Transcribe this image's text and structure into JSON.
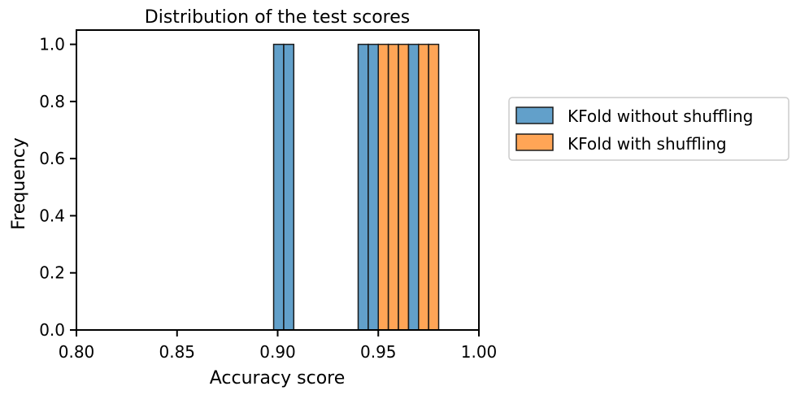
{
  "chart_data": {
    "type": "bar",
    "title": "Distribution of the test scores",
    "xlabel": "Accuracy score",
    "ylabel": "Frequency",
    "xlim": [
      0.8,
      1.0
    ],
    "ylim": [
      0.0,
      1.05
    ],
    "xticks": [
      "0.80",
      "0.85",
      "0.90",
      "0.95",
      "1.00"
    ],
    "yticks": [
      "0.0",
      "0.2",
      "0.4",
      "0.6",
      "0.8",
      "1.0"
    ],
    "legend_position": "outside-right",
    "series": [
      {
        "name": "KFold without shuffling",
        "color": "#1f77b4",
        "bins": [
          {
            "x0": 0.898,
            "x1": 0.903,
            "count": 1
          },
          {
            "x0": 0.903,
            "x1": 0.908,
            "count": 1
          },
          {
            "x0": 0.94,
            "x1": 0.945,
            "count": 1
          },
          {
            "x0": 0.945,
            "x1": 0.95,
            "count": 1
          },
          {
            "x0": 0.965,
            "x1": 0.97,
            "count": 1
          }
        ]
      },
      {
        "name": "KFold with shuffling",
        "color": "#ff7f0e",
        "bins": [
          {
            "x0": 0.95,
            "x1": 0.955,
            "count": 1
          },
          {
            "x0": 0.955,
            "x1": 0.96,
            "count": 1
          },
          {
            "x0": 0.96,
            "x1": 0.965,
            "count": 1
          },
          {
            "x0": 0.97,
            "x1": 0.975,
            "count": 1
          },
          {
            "x0": 0.975,
            "x1": 0.98,
            "count": 1
          }
        ]
      }
    ]
  }
}
